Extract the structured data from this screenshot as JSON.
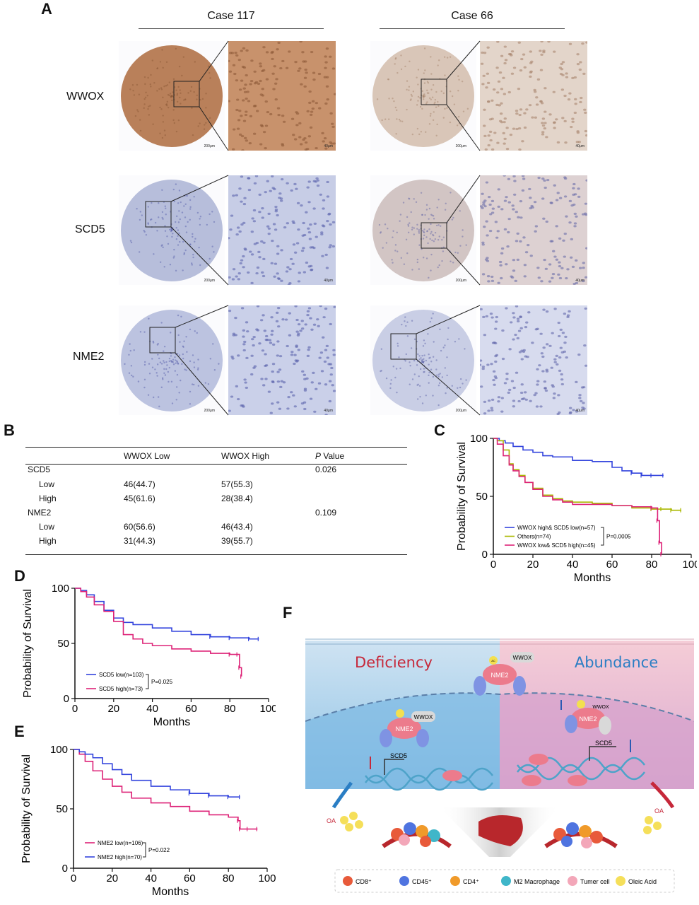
{
  "panels": {
    "a": "A",
    "b": "B",
    "c": "C",
    "d": "D",
    "e": "E",
    "f": "F"
  },
  "ihc": {
    "cases": [
      "Case 117",
      "Case 66"
    ],
    "rows": [
      "WWOX",
      "SCD5",
      "NME2"
    ],
    "scale_large": "200μm",
    "scale_small": "40μm"
  },
  "table": {
    "headers": [
      "",
      "WWOX Low",
      "WWOX High",
      "P Value"
    ],
    "header_p_italic": "P",
    "header_p_rest": " Value",
    "rows": [
      {
        "label": "SCD5",
        "indent": false,
        "low": "",
        "high": "",
        "p": "0.026"
      },
      {
        "label": "Low",
        "indent": true,
        "low": "46(44.7)",
        "high": "57(55.3)",
        "p": ""
      },
      {
        "label": "High",
        "indent": true,
        "low": "45(61.6)",
        "high": "28(38.4)",
        "p": ""
      },
      {
        "label": "NME2",
        "indent": false,
        "low": "",
        "high": "",
        "p": "0.109"
      },
      {
        "label": "Low",
        "indent": true,
        "low": "60(56.6)",
        "high": "46(43.4)",
        "p": ""
      },
      {
        "label": "High",
        "indent": true,
        "low": "31(44.3)",
        "high": "39(55.7)",
        "p": ""
      }
    ]
  },
  "chart_data": [
    {
      "panel": "C",
      "type": "line",
      "xlabel": "Months",
      "ylabel": "Probability of Survival",
      "xlim": [
        0,
        100
      ],
      "ylim": [
        0,
        100
      ],
      "xticks": [
        0,
        20,
        40,
        60,
        80,
        100
      ],
      "yticks": [
        0,
        50,
        100
      ],
      "pvalue": "P=0.0005",
      "series": [
        {
          "name": "WWOX high& SCD5 low(n=57)",
          "color": "#3344dd",
          "x": [
            0,
            3,
            6,
            10,
            15,
            20,
            25,
            30,
            40,
            50,
            60,
            65,
            70,
            75,
            80,
            86
          ],
          "y": [
            100,
            98,
            96,
            93,
            90,
            88,
            85,
            84,
            81,
            80,
            75,
            72,
            70,
            68,
            68,
            68
          ]
        },
        {
          "name": "Others(n=74)",
          "color": "#aab800",
          "x": [
            0,
            2,
            5,
            8,
            10,
            13,
            16,
            20,
            25,
            30,
            35,
            40,
            50,
            60,
            70,
            80,
            85,
            90,
            95
          ],
          "y": [
            100,
            98,
            90,
            78,
            73,
            68,
            62,
            57,
            51,
            48,
            46,
            45,
            44,
            42,
            40,
            39,
            39,
            38,
            38
          ]
        },
        {
          "name": "WWOX low& SCD5 high(n=45)",
          "color": "#dd2277",
          "x": [
            0,
            2,
            5,
            8,
            10,
            13,
            16,
            20,
            25,
            30,
            35,
            40,
            50,
            60,
            70,
            80,
            83,
            84,
            85
          ],
          "y": [
            100,
            95,
            85,
            77,
            72,
            67,
            62,
            56,
            50,
            47,
            45,
            43,
            43,
            42,
            41,
            40,
            29,
            10,
            0
          ]
        }
      ]
    },
    {
      "panel": "D",
      "type": "line",
      "xlabel": "Months",
      "ylabel": "Probability of Survival",
      "xlim": [
        0,
        100
      ],
      "ylim": [
        0,
        100
      ],
      "xticks": [
        0,
        20,
        40,
        60,
        80,
        100
      ],
      "yticks": [
        0,
        50,
        100
      ],
      "pvalue": "P=0.025",
      "series": [
        {
          "name": "SCD5 low(n=103)",
          "color": "#3344dd",
          "x": [
            0,
            3,
            6,
            10,
            15,
            20,
            25,
            30,
            40,
            50,
            60,
            70,
            80,
            90,
            95
          ],
          "y": [
            100,
            98,
            94,
            88,
            80,
            73,
            69,
            67,
            64,
            61,
            58,
            56,
            55,
            54,
            54
          ]
        },
        {
          "name": "SCD5 high(n=73)",
          "color": "#dd2277",
          "x": [
            0,
            3,
            6,
            10,
            15,
            20,
            25,
            30,
            35,
            40,
            50,
            60,
            70,
            80,
            84,
            85,
            86
          ],
          "y": [
            100,
            97,
            92,
            85,
            79,
            70,
            58,
            54,
            50,
            48,
            45,
            43,
            41,
            40,
            40,
            28,
            20
          ]
        }
      ]
    },
    {
      "panel": "E",
      "type": "line",
      "xlabel": "Months",
      "ylabel": "Probability of Survival",
      "xlim": [
        0,
        100
      ],
      "ylim": [
        0,
        100
      ],
      "xticks": [
        0,
        20,
        40,
        60,
        80,
        100
      ],
      "yticks": [
        0,
        50,
        100
      ],
      "pvalue": "P=0.022",
      "series": [
        {
          "name": "NME2 low(n=106)",
          "color": "#dd2277",
          "x": [
            0,
            3,
            6,
            10,
            15,
            20,
            25,
            30,
            40,
            50,
            60,
            70,
            80,
            85,
            86,
            90,
            95
          ],
          "y": [
            100,
            96,
            90,
            82,
            75,
            69,
            64,
            59,
            55,
            52,
            48,
            45,
            43,
            40,
            33,
            33,
            33
          ]
        },
        {
          "name": "NME2 high(n=70)",
          "color": "#3344dd",
          "x": [
            0,
            3,
            6,
            10,
            15,
            20,
            25,
            30,
            40,
            50,
            60,
            70,
            80,
            86
          ],
          "y": [
            100,
            98,
            96,
            93,
            88,
            83,
            79,
            74,
            69,
            66,
            63,
            61,
            60,
            60
          ]
        }
      ]
    }
  ],
  "diagram": {
    "left_title": "Deficiency",
    "right_title": "Abundance",
    "wwox": "WWOX",
    "nme2": "NME2",
    "kat1": "KAT1",
    "ac": "AC",
    "scd5": "SCD5",
    "oa": "OA",
    "legend": [
      "CD8⁺",
      "CD45⁺",
      "CD4⁺",
      "M2 Macrophage",
      "Tumer cell",
      "Oleic Acid"
    ],
    "colors": {
      "deficiency": "#c6283a",
      "abundance": "#2a7ec4",
      "cd8": "#e85a3a",
      "cd45": "#4f74e0",
      "cd4": "#f09a2a",
      "m2": "#3fb6c9",
      "tumer": "#f3a7b9",
      "oleic": "#f5df5a"
    }
  }
}
